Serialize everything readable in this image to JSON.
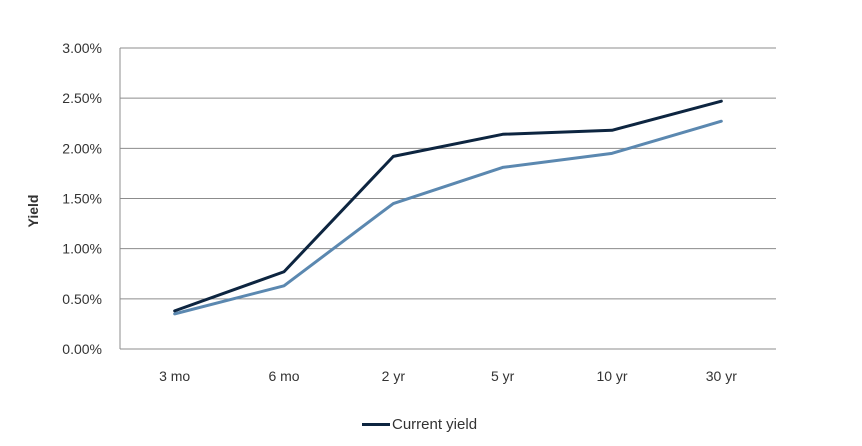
{
  "chart_data": {
    "type": "line",
    "categories": [
      "3 mo",
      "6 mo",
      "2 yr",
      "5 yr",
      "10 yr",
      "30 yr"
    ],
    "series": [
      {
        "name": "Current yield",
        "values": [
          0.38,
          0.77,
          1.92,
          2.14,
          2.18,
          2.47
        ],
        "color": "#0d2540"
      },
      {
        "values": [
          0.35,
          0.63,
          1.45,
          1.81,
          1.95,
          2.27
        ],
        "color": "#5b88b0"
      }
    ],
    "ylabel": "Yield",
    "ylim": [
      0,
      3
    ],
    "yticks": [
      "0.00%",
      "0.50%",
      "1.00%",
      "1.50%",
      "2.00%",
      "2.50%",
      "3.00%"
    ],
    "grid": true,
    "legend_position": "bottom"
  }
}
